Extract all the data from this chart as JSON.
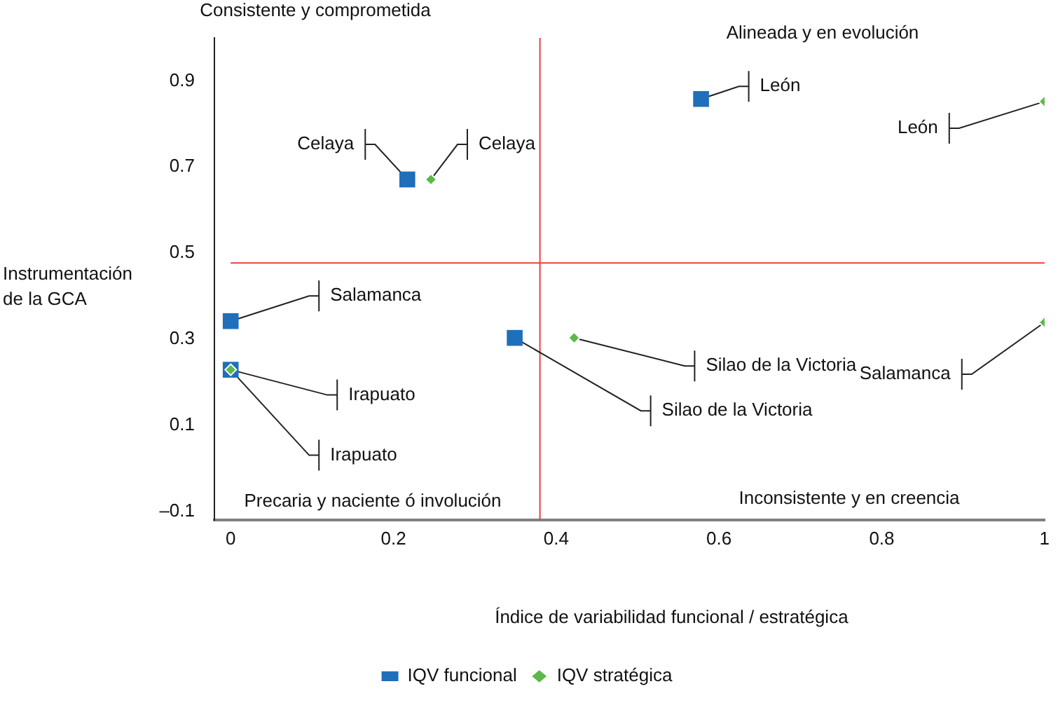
{
  "chart_data": {
    "type": "scatter",
    "xlabel": "Índice de variabilidad funcional / estratégica",
    "ylabel": "Instrumentación de la GCA",
    "xlim": [
      -0.02,
      1.0
    ],
    "ylim": [
      -0.12,
      1.0
    ],
    "xticks": [
      0,
      0.2,
      0.4,
      0.6,
      0.8,
      1
    ],
    "yticks": [
      {
        "value": -0.1,
        "label": "–0.1"
      },
      0.1,
      0.3,
      0.5,
      0.7,
      0.9
    ],
    "grid": false,
    "legend": "bottom",
    "series": [
      {
        "name": "IQV funcional",
        "color": "#1f6fba",
        "marker": "square",
        "x": [
          0.217,
          0,
          0,
          0.349,
          0.578
        ],
        "values": [
          0.671,
          0.342,
          0.229,
          0.303,
          0.858
        ]
      },
      {
        "name": "IQV stratégica",
        "color": "#5bb849",
        "marker": "diamond",
        "x": [
          0.246,
          0,
          0.422,
          1.0,
          1.0
        ],
        "values": [
          0.671,
          0.229,
          0.303,
          0.852,
          0.339
        ]
      }
    ],
    "ref_lines": [
      {
        "axis": "x",
        "value": 0.38,
        "color": "#e8413c"
      },
      {
        "axis": "y",
        "value": 0.477,
        "color": "#e8413c"
      }
    ],
    "annotations": [
      "Consistente y comprometida",
      "Alineada y en evolución",
      "Precaria y naciente ó involución",
      "Inconsistente y en creencia",
      {
        "text": "Celaya",
        "x": 0.217,
        "y": 0.671
      },
      {
        "text": "Celaya",
        "x": 0.246,
        "y": 0.671
      },
      {
        "text": "Salamanca",
        "x": 0,
        "y": 0.342
      },
      {
        "text": "Irapuato",
        "x": 0,
        "y": 0.229
      },
      {
        "text": "Irapuato",
        "x": 0,
        "y": 0.229
      },
      {
        "text": "Silao de la Victoria",
        "x": 0.349,
        "y": 0.303
      },
      {
        "text": "Silao de la Victoria",
        "x": 0.422,
        "y": 0.303
      },
      {
        "text": "León",
        "x": 0.578,
        "y": 0.858
      },
      {
        "text": "León",
        "x": 1.0,
        "y": 0.852
      },
      {
        "text": "Salamanca",
        "x": 1.0,
        "y": 0.339
      }
    ]
  }
}
